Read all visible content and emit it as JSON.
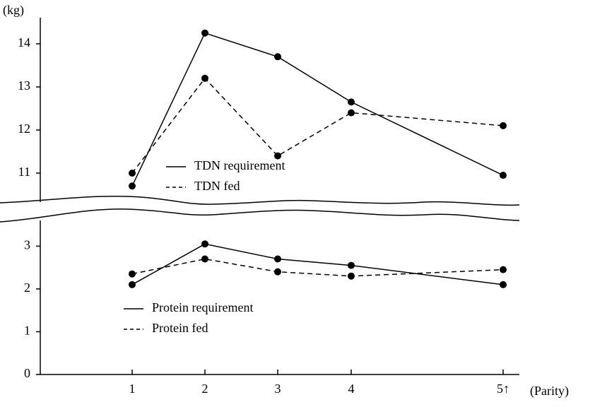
{
  "chart_data": [
    {
      "type": "line",
      "y_label": "(kg)",
      "ylim": [
        10.4,
        14.6
      ],
      "yticks": [
        11,
        12,
        13,
        14
      ],
      "series": [
        {
          "name": "TDN requirement",
          "color": "#000",
          "dash": "solid",
          "values": [
            10.7,
            14.25,
            13.7,
            12.65,
            10.95
          ]
        },
        {
          "name": "TDN fed",
          "color": "#000",
          "dash": "dashed",
          "values": [
            11.0,
            13.2,
            11.4,
            12.4,
            12.1
          ]
        }
      ]
    },
    {
      "type": "line",
      "x_label": "(Parity)",
      "categories": [
        "1",
        "2",
        "3",
        "4",
        "5↑"
      ],
      "ylim": [
        0,
        3.6
      ],
      "yticks": [
        0,
        1,
        2,
        3
      ],
      "series": [
        {
          "name": "Protein requirement",
          "color": "#000",
          "dash": "solid",
          "values": [
            2.1,
            3.05,
            2.7,
            2.55,
            2.1
          ]
        },
        {
          "name": "Protein fed",
          "color": "#000",
          "dash": "dashed",
          "values": [
            2.35,
            2.7,
            2.4,
            2.3,
            2.45
          ]
        }
      ]
    }
  ]
}
